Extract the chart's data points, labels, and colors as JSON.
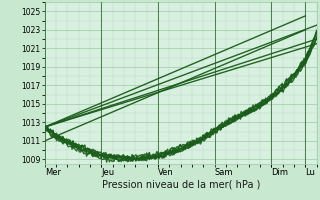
{
  "xlabel": "Pression niveau de la mer( hPa )",
  "bg_color": "#c8e8d0",
  "plot_bg_color": "#d8f0e0",
  "grid_major_color": "#a0c8a8",
  "grid_minor_color": "#b8d8c0",
  "line_color": "#1a5c1a",
  "ylim": [
    1008.5,
    1026.0
  ],
  "yticks": [
    1009,
    1011,
    1013,
    1015,
    1017,
    1019,
    1021,
    1023,
    1025
  ],
  "day_labels": [
    "Mer",
    "Jeu",
    "Ven",
    "Sam",
    "Dim",
    "Lu"
  ],
  "day_positions": [
    0.0,
    0.208,
    0.417,
    0.625,
    0.833,
    0.958
  ],
  "xlim": [
    0.0,
    1.0
  ],
  "straight_lines": [
    {
      "x": [
        0.0,
        1.0
      ],
      "y": [
        1012.5,
        1023.5
      ],
      "lw": 1.0
    },
    {
      "x": [
        0.0,
        0.958
      ],
      "y": [
        1012.5,
        1024.5
      ],
      "lw": 1.0
    },
    {
      "x": [
        0.0,
        0.958
      ],
      "y": [
        1011.0,
        1023.0
      ],
      "lw": 1.0
    },
    {
      "x": [
        0.0,
        1.0
      ],
      "y": [
        1012.5,
        1022.0
      ],
      "lw": 1.0
    },
    {
      "x": [
        0.0,
        1.0
      ],
      "y": [
        1012.5,
        1021.5
      ],
      "lw": 1.0
    }
  ],
  "noisy_lines": [
    {
      "pts": [
        [
          0.0,
          1012.5
        ],
        [
          0.05,
          1011.5
        ],
        [
          0.1,
          1010.8
        ],
        [
          0.15,
          1010.2
        ],
        [
          0.18,
          1009.8
        ],
        [
          0.208,
          1009.5
        ],
        [
          0.23,
          1009.4
        ],
        [
          0.26,
          1009.3
        ],
        [
          0.3,
          1009.2
        ],
        [
          0.33,
          1009.1
        ],
        [
          0.36,
          1009.1
        ],
        [
          0.4,
          1009.2
        ],
        [
          0.417,
          1009.3
        ],
        [
          0.45,
          1009.6
        ],
        [
          0.49,
          1010.0
        ],
        [
          0.53,
          1010.5
        ],
        [
          0.57,
          1011.0
        ],
        [
          0.6,
          1011.5
        ],
        [
          0.625,
          1012.0
        ],
        [
          0.65,
          1012.5
        ],
        [
          0.68,
          1013.0
        ],
        [
          0.7,
          1013.3
        ],
        [
          0.73,
          1013.8
        ],
        [
          0.76,
          1014.2
        ],
        [
          0.79,
          1014.7
        ],
        [
          0.83,
          1015.5
        ],
        [
          0.86,
          1016.2
        ],
        [
          0.89,
          1017.0
        ],
        [
          0.92,
          1018.0
        ],
        [
          0.958,
          1019.5
        ],
        [
          0.975,
          1020.5
        ],
        [
          0.99,
          1021.5
        ],
        [
          1.0,
          1022.0
        ]
      ],
      "lw": 1.0,
      "noise": 0.12
    },
    {
      "pts": [
        [
          0.0,
          1012.5
        ],
        [
          0.05,
          1011.3
        ],
        [
          0.1,
          1010.5
        ],
        [
          0.15,
          1009.9
        ],
        [
          0.18,
          1009.5
        ],
        [
          0.208,
          1009.3
        ],
        [
          0.23,
          1009.2
        ],
        [
          0.26,
          1009.1
        ],
        [
          0.3,
          1009.0
        ],
        [
          0.33,
          1009.0
        ],
        [
          0.36,
          1009.0
        ],
        [
          0.4,
          1009.1
        ],
        [
          0.417,
          1009.2
        ],
        [
          0.45,
          1009.5
        ],
        [
          0.49,
          1009.9
        ],
        [
          0.53,
          1010.4
        ],
        [
          0.57,
          1010.9
        ],
        [
          0.6,
          1011.4
        ],
        [
          0.625,
          1012.0
        ],
        [
          0.65,
          1012.5
        ],
        [
          0.68,
          1013.0
        ],
        [
          0.7,
          1013.3
        ],
        [
          0.73,
          1013.8
        ],
        [
          0.76,
          1014.3
        ],
        [
          0.79,
          1014.8
        ],
        [
          0.83,
          1015.6
        ],
        [
          0.86,
          1016.3
        ],
        [
          0.89,
          1017.2
        ],
        [
          0.92,
          1018.3
        ],
        [
          0.958,
          1019.8
        ],
        [
          0.975,
          1020.8
        ],
        [
          0.99,
          1021.5
        ],
        [
          1.0,
          1022.3
        ]
      ],
      "lw": 1.0,
      "noise": 0.12
    },
    {
      "pts": [
        [
          0.0,
          1012.2
        ],
        [
          0.05,
          1011.0
        ],
        [
          0.1,
          1010.3
        ],
        [
          0.15,
          1009.7
        ],
        [
          0.18,
          1009.4
        ],
        [
          0.208,
          1009.1
        ],
        [
          0.23,
          1009.0
        ],
        [
          0.26,
          1008.9
        ],
        [
          0.3,
          1008.9
        ],
        [
          0.33,
          1009.0
        ],
        [
          0.36,
          1009.1
        ],
        [
          0.4,
          1009.2
        ],
        [
          0.417,
          1009.3
        ],
        [
          0.45,
          1009.5
        ],
        [
          0.49,
          1009.9
        ],
        [
          0.53,
          1010.3
        ],
        [
          0.57,
          1010.9
        ],
        [
          0.6,
          1011.4
        ],
        [
          0.625,
          1011.9
        ],
        [
          0.65,
          1012.4
        ],
        [
          0.68,
          1012.9
        ],
        [
          0.7,
          1013.2
        ],
        [
          0.73,
          1013.7
        ],
        [
          0.76,
          1014.2
        ],
        [
          0.79,
          1014.6
        ],
        [
          0.83,
          1015.5
        ],
        [
          0.86,
          1016.2
        ],
        [
          0.89,
          1017.0
        ],
        [
          0.92,
          1017.8
        ],
        [
          0.958,
          1019.3
        ],
        [
          0.975,
          1020.3
        ],
        [
          0.99,
          1021.3
        ],
        [
          1.0,
          1022.1
        ]
      ],
      "lw": 1.0,
      "noise": 0.12
    },
    {
      "pts": [
        [
          0.0,
          1012.5
        ],
        [
          0.05,
          1011.5
        ],
        [
          0.1,
          1010.8
        ],
        [
          0.15,
          1010.3
        ],
        [
          0.18,
          1009.9
        ],
        [
          0.208,
          1009.6
        ],
        [
          0.23,
          1009.5
        ],
        [
          0.26,
          1009.4
        ],
        [
          0.3,
          1009.3
        ],
        [
          0.33,
          1009.3
        ],
        [
          0.36,
          1009.4
        ],
        [
          0.4,
          1009.5
        ],
        [
          0.417,
          1009.6
        ],
        [
          0.45,
          1009.9
        ],
        [
          0.49,
          1010.3
        ],
        [
          0.53,
          1010.8
        ],
        [
          0.57,
          1011.3
        ],
        [
          0.6,
          1011.8
        ],
        [
          0.625,
          1012.3
        ],
        [
          0.65,
          1012.8
        ],
        [
          0.68,
          1013.3
        ],
        [
          0.7,
          1013.6
        ],
        [
          0.73,
          1014.0
        ],
        [
          0.76,
          1014.5
        ],
        [
          0.79,
          1015.0
        ],
        [
          0.83,
          1015.8
        ],
        [
          0.86,
          1016.6
        ],
        [
          0.89,
          1017.4
        ],
        [
          0.92,
          1018.4
        ],
        [
          0.958,
          1020.0
        ],
        [
          0.975,
          1021.0
        ],
        [
          0.99,
          1022.0
        ],
        [
          1.0,
          1022.8
        ]
      ],
      "lw": 1.0,
      "noise": 0.12
    },
    {
      "pts": [
        [
          0.0,
          1012.3
        ],
        [
          0.05,
          1011.2
        ],
        [
          0.1,
          1010.5
        ],
        [
          0.15,
          1010.0
        ],
        [
          0.18,
          1009.6
        ],
        [
          0.208,
          1009.4
        ],
        [
          0.23,
          1009.3
        ],
        [
          0.26,
          1009.2
        ],
        [
          0.3,
          1009.1
        ],
        [
          0.33,
          1009.1
        ],
        [
          0.36,
          1009.2
        ],
        [
          0.4,
          1009.3
        ],
        [
          0.417,
          1009.4
        ],
        [
          0.45,
          1009.7
        ],
        [
          0.49,
          1010.1
        ],
        [
          0.53,
          1010.6
        ],
        [
          0.57,
          1011.1
        ],
        [
          0.6,
          1011.6
        ],
        [
          0.625,
          1012.1
        ],
        [
          0.65,
          1012.6
        ],
        [
          0.68,
          1013.1
        ],
        [
          0.7,
          1013.4
        ],
        [
          0.73,
          1013.9
        ],
        [
          0.76,
          1014.4
        ],
        [
          0.79,
          1014.9
        ],
        [
          0.83,
          1015.7
        ],
        [
          0.86,
          1016.4
        ],
        [
          0.89,
          1017.2
        ],
        [
          0.92,
          1018.2
        ],
        [
          0.958,
          1019.7
        ],
        [
          0.975,
          1020.8
        ],
        [
          0.99,
          1021.9
        ],
        [
          1.0,
          1022.6
        ]
      ],
      "lw": 1.0,
      "noise": 0.12
    },
    {
      "pts": [
        [
          0.0,
          1012.5
        ],
        [
          0.05,
          1011.4
        ],
        [
          0.1,
          1010.7
        ],
        [
          0.15,
          1010.1
        ],
        [
          0.18,
          1009.7
        ],
        [
          0.208,
          1009.5
        ],
        [
          0.23,
          1009.4
        ],
        [
          0.26,
          1009.3
        ],
        [
          0.3,
          1009.2
        ],
        [
          0.33,
          1009.1
        ],
        [
          0.36,
          1009.2
        ],
        [
          0.4,
          1009.3
        ],
        [
          0.417,
          1009.4
        ],
        [
          0.45,
          1009.7
        ],
        [
          0.49,
          1010.1
        ],
        [
          0.53,
          1010.6
        ],
        [
          0.57,
          1011.2
        ],
        [
          0.6,
          1011.7
        ],
        [
          0.625,
          1012.2
        ],
        [
          0.65,
          1012.7
        ],
        [
          0.68,
          1013.2
        ],
        [
          0.7,
          1013.5
        ],
        [
          0.73,
          1014.0
        ],
        [
          0.76,
          1014.5
        ],
        [
          0.79,
          1015.0
        ],
        [
          0.83,
          1015.8
        ],
        [
          0.86,
          1016.6
        ],
        [
          0.89,
          1017.4
        ],
        [
          0.92,
          1018.4
        ],
        [
          0.958,
          1019.9
        ],
        [
          0.975,
          1021.0
        ],
        [
          0.99,
          1022.1
        ],
        [
          1.0,
          1022.8
        ]
      ],
      "lw": 1.0,
      "noise": 0.15
    }
  ],
  "noisy_line_seed": 42
}
